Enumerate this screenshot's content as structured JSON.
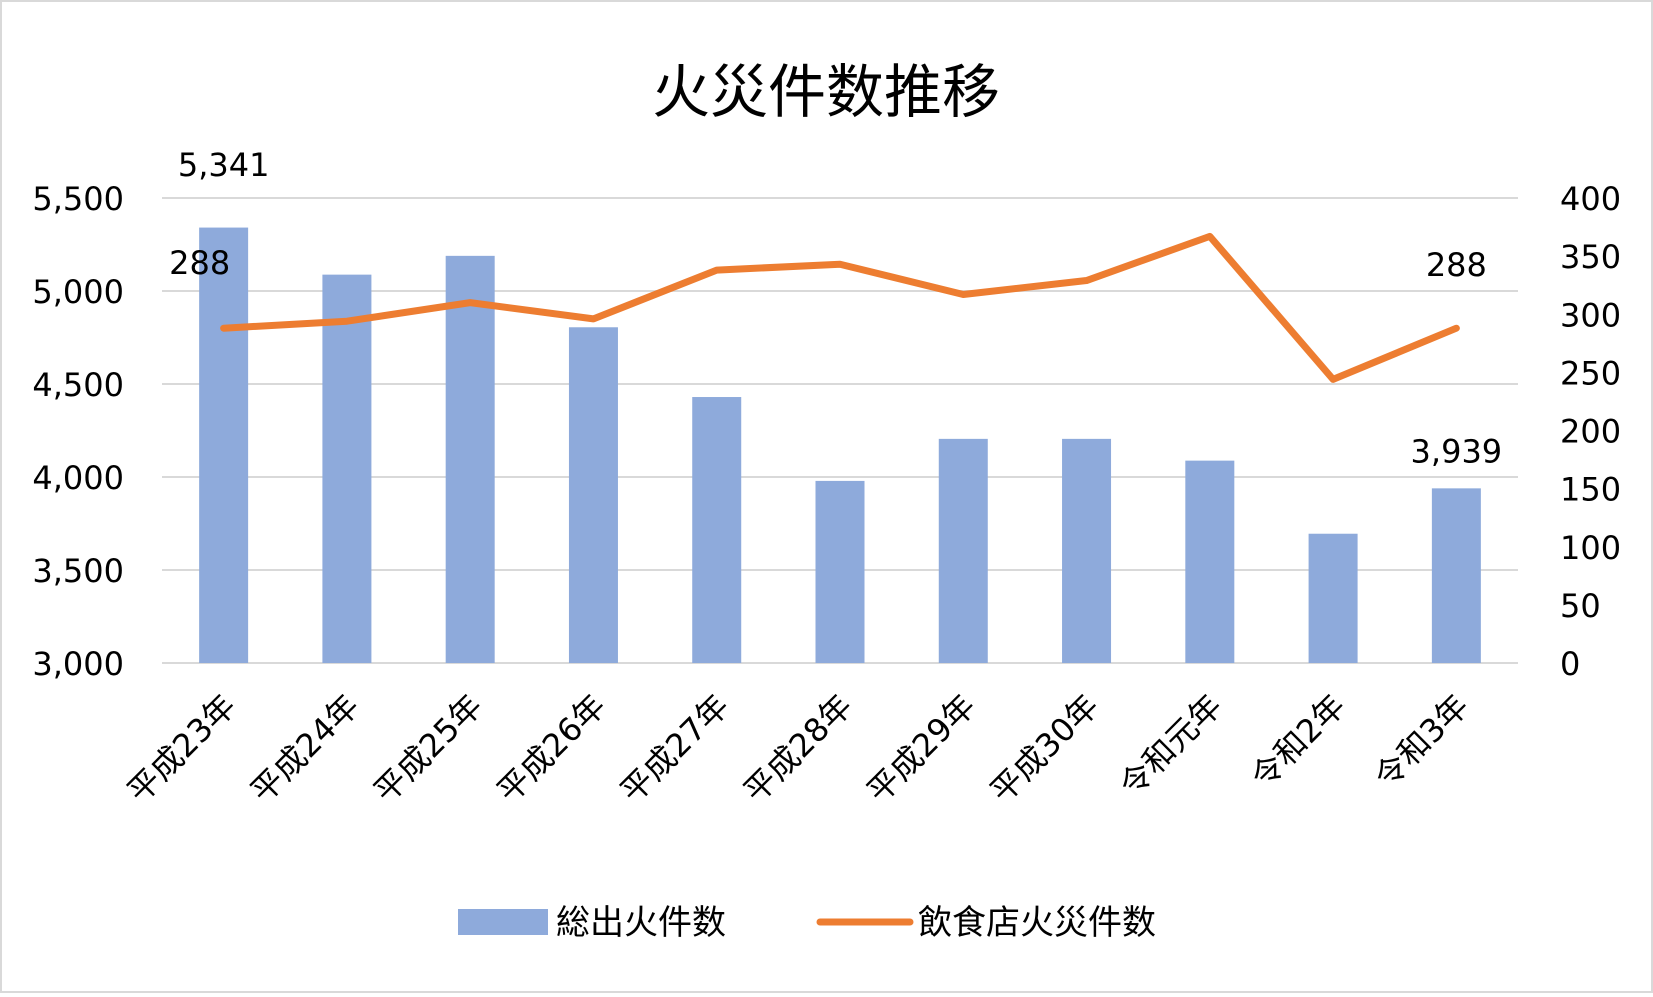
{
  "chart_data": {
    "type": "bar+line",
    "title": "火災件数推移",
    "categories": [
      "平成23年",
      "平成24年",
      "平成25年",
      "平成26年",
      "平成27年",
      "平成28年",
      "平成29年",
      "平成30年",
      "令和元年",
      "令和2年",
      "令和3年"
    ],
    "series": [
      {
        "name": "総出火件数",
        "type": "bar",
        "axis": "left",
        "color": "#8eaadb",
        "values": [
          5341,
          5088,
          5189,
          4805,
          4430,
          3979,
          4205,
          4205,
          4088,
          3695,
          3939
        ]
      },
      {
        "name": "飲食店火災件数",
        "type": "line",
        "axis": "right",
        "color": "#ed7d31",
        "values": [
          288,
          294,
          310,
          296,
          338,
          343,
          317,
          329,
          367,
          244,
          288
        ]
      }
    ],
    "y_left": {
      "min": 3000,
      "max": 5500,
      "step": 500,
      "ticks": [
        "3,000",
        "3,500",
        "4,000",
        "4,500",
        "5,000",
        "5,500"
      ]
    },
    "y_right": {
      "min": 0,
      "max": 400,
      "step": 50,
      "ticks": [
        "0",
        "50",
        "100",
        "150",
        "200",
        "250",
        "300",
        "350",
        "400"
      ]
    },
    "data_labels": [
      {
        "series": 0,
        "index": 0,
        "text": "5,341"
      },
      {
        "series": 0,
        "index": 10,
        "text": "3,939"
      },
      {
        "series": 1,
        "index": 0,
        "text": "288"
      },
      {
        "series": 1,
        "index": 10,
        "text": "288"
      }
    ],
    "grid": true,
    "legend_position": "bottom"
  }
}
